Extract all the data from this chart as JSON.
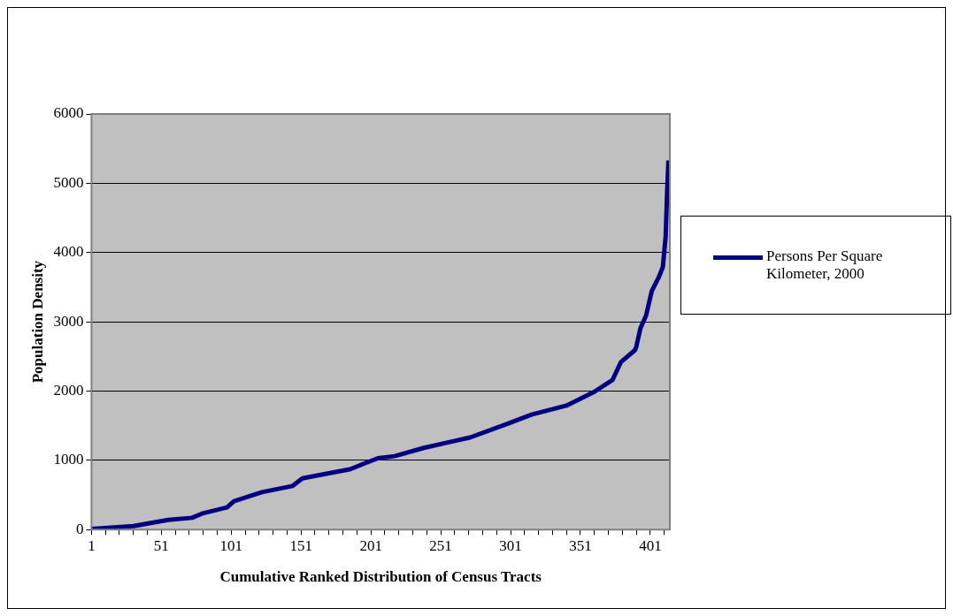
{
  "chart_data": {
    "type": "line",
    "xlabel": "Cumulative Ranked Distribution of Census Tracts",
    "ylabel": "Population Density",
    "series": [
      {
        "name": "Persons Per Square Kilometer, 2000",
        "color": "#000080",
        "x": [
          1,
          31,
          56,
          73,
          80,
          98,
          103,
          123,
          145,
          152,
          170,
          186,
          197,
          206,
          218,
          239,
          272,
          299,
          316,
          341,
          361,
          374,
          377,
          380,
          390,
          391,
          394,
          398,
          402,
          407,
          410,
          412,
          413,
          414
        ],
        "values": [
          10,
          50,
          140,
          170,
          230,
          320,
          410,
          540,
          630,
          740,
          810,
          870,
          960,
          1030,
          1060,
          1180,
          1330,
          1530,
          1660,
          1790,
          1990,
          2160,
          2290,
          2420,
          2590,
          2640,
          2910,
          3090,
          3440,
          3640,
          3790,
          4230,
          4850,
          5330
        ]
      }
    ],
    "xlim": [
      1,
      415
    ],
    "xticks": [
      1,
      {
        "value": 11,
        "label": null
      },
      {
        "value": 21,
        "label": null
      },
      {
        "value": 31,
        "label": null
      },
      {
        "value": 41,
        "label": null
      },
      51,
      {
        "value": 61,
        "label": null
      },
      {
        "value": 71,
        "label": null
      },
      {
        "value": 81,
        "label": null
      },
      {
        "value": 91,
        "label": null
      },
      101,
      {
        "value": 111,
        "label": null
      },
      {
        "value": 121,
        "label": null
      },
      {
        "value": 131,
        "label": null
      },
      {
        "value": 141,
        "label": null
      },
      151,
      {
        "value": 161,
        "label": null
      },
      {
        "value": 171,
        "label": null
      },
      {
        "value": 181,
        "label": null
      },
      {
        "value": 191,
        "label": null
      },
      201,
      {
        "value": 211,
        "label": null
      },
      {
        "value": 221,
        "label": null
      },
      {
        "value": 231,
        "label": null
      },
      {
        "value": 241,
        "label": null
      },
      251,
      {
        "value": 261,
        "label": null
      },
      {
        "value": 271,
        "label": null
      },
      {
        "value": 281,
        "label": null
      },
      {
        "value": 291,
        "label": null
      },
      301,
      {
        "value": 311,
        "label": null
      },
      {
        "value": 321,
        "label": null
      },
      {
        "value": 331,
        "label": null
      },
      {
        "value": 341,
        "label": null
      },
      351,
      {
        "value": 361,
        "label": null
      },
      {
        "value": 371,
        "label": null
      },
      {
        "value": 381,
        "label": null
      },
      {
        "value": 391,
        "label": null
      },
      401,
      {
        "value": 411,
        "label": null
      }
    ],
    "ylim": [
      0,
      6000
    ],
    "yticks": [
      0,
      1000,
      2000,
      3000,
      4000,
      5000,
      6000
    ],
    "grid": "y",
    "legend": "right",
    "marker": "none",
    "line_style": "solid"
  }
}
